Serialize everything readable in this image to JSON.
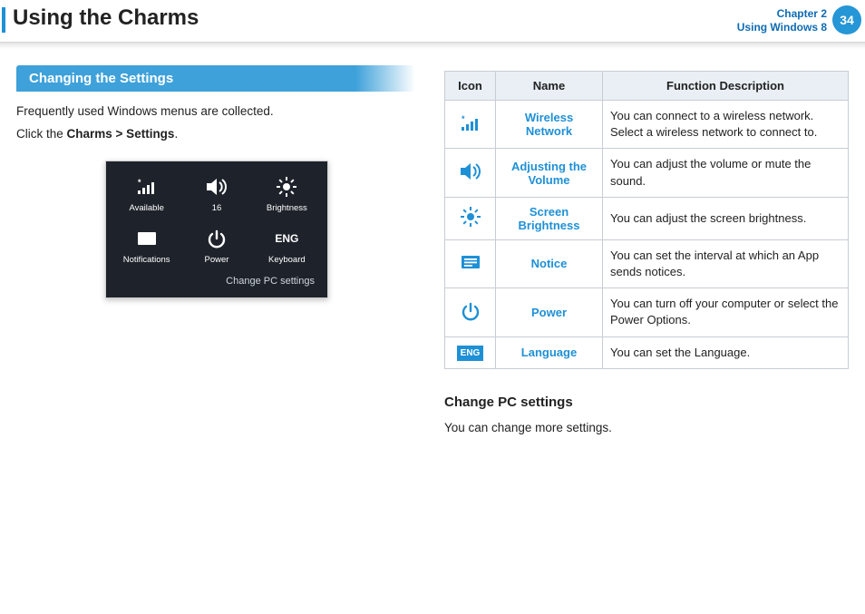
{
  "colors": {
    "accent": "#1e90d6",
    "accent_dark": "#0e6bb3",
    "panel_bg": "#1e232b",
    "header_bg": "#e9eff5",
    "border": "#c7cdd4"
  },
  "header": {
    "title": "Using the Charms",
    "chapter_line1": "Chapter 2",
    "chapter_line2": "Using Windows 8",
    "page_number": "34"
  },
  "section": {
    "tab_label": "Changing the Settings",
    "intro_line1": "Frequently used Windows menus are collected.",
    "intro_line2_prefix": "Click the ",
    "intro_line2_bold": "Charms > Settings",
    "intro_line2_suffix": "."
  },
  "panel": {
    "tiles": [
      {
        "label": "Available",
        "icon": "wifi"
      },
      {
        "label": "16",
        "icon": "volume"
      },
      {
        "label": "Brightness",
        "icon": "brightness"
      },
      {
        "label": "Notifications",
        "icon": "notice"
      },
      {
        "label": "Power",
        "icon": "power"
      },
      {
        "label": "Keyboard",
        "icon": "eng",
        "text": "ENG"
      }
    ],
    "footer": "Change PC settings"
  },
  "table": {
    "headers": {
      "icon": "Icon",
      "name": "Name",
      "desc": "Function Description"
    },
    "rows": [
      {
        "icon": "wifi",
        "name": "Wireless Network",
        "desc": "You can connect to a wireless network. Select a wireless network to connect to."
      },
      {
        "icon": "volume",
        "name": "Adjusting the Volume",
        "desc": "You can adjust the volume or mute the sound."
      },
      {
        "icon": "brightness",
        "name": "Screen Brightness",
        "desc": "You can adjust the screen brightness."
      },
      {
        "icon": "notice",
        "name": "Notice",
        "desc": "You can set the interval at which an App sends notices."
      },
      {
        "icon": "power",
        "name": "Power",
        "desc": "You can turn off your computer or select the Power Options."
      },
      {
        "icon": "eng",
        "name": "Language",
        "desc": "You can set the Language.",
        "text": "ENG"
      }
    ]
  },
  "subsection": {
    "heading": "Change PC settings",
    "text": "You can change more settings."
  }
}
